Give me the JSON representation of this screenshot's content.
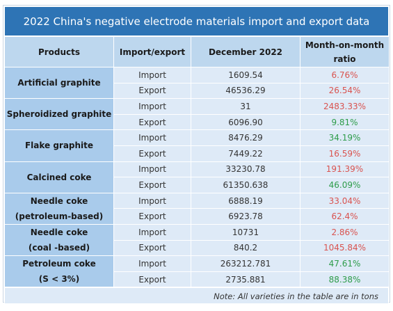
{
  "title": "2022 China's negative electrode materials import and export data",
  "headers": {
    "products": "Products",
    "import_export": "Import/export",
    "december": "December 2022",
    "mom_line1": "Month-on-month",
    "mom_line2": "ratio"
  },
  "groups": [
    {
      "product_line1": "Artificial graphite",
      "product_line2": "",
      "rows": [
        {
          "type": "Import",
          "value": "1609.54",
          "ratio": "6.76%",
          "ratio_color": "red"
        },
        {
          "type": "Export",
          "value": "46536.29",
          "ratio": "26.54%",
          "ratio_color": "red"
        }
      ]
    },
    {
      "product_line1": "Spheroidized graphite",
      "product_line2": "",
      "rows": [
        {
          "type": "Import",
          "value": "31",
          "ratio": "2483.33%",
          "ratio_color": "red"
        },
        {
          "type": "Export",
          "value": "6096.90",
          "ratio": "9.81%",
          "ratio_color": "green"
        }
      ]
    },
    {
      "product_line1": "Flake graphite",
      "product_line2": "",
      "rows": [
        {
          "type": "Import",
          "value": "8476.29",
          "ratio": "34.19%",
          "ratio_color": "green"
        },
        {
          "type": "Export",
          "value": "7449.22",
          "ratio": "16.59%",
          "ratio_color": "red"
        }
      ]
    },
    {
      "product_line1": "Calcined coke",
      "product_line2": "",
      "rows": [
        {
          "type": "Import",
          "value": "33230.78",
          "ratio": "191.39%",
          "ratio_color": "red"
        },
        {
          "type": "Export",
          "value": "61350.638",
          "ratio": "46.09%",
          "ratio_color": "green"
        }
      ]
    },
    {
      "product_line1": "Needle coke",
      "product_line2": "(petroleum-based)",
      "rows": [
        {
          "type": "Import",
          "value": "6888.19",
          "ratio": "33.04%",
          "ratio_color": "red"
        },
        {
          "type": "Export",
          "value": "6923.78",
          "ratio": "62.4%",
          "ratio_color": "red"
        }
      ]
    },
    {
      "product_line1": "Needle coke",
      "product_line2": "(coal -based)",
      "rows": [
        {
          "type": "Import",
          "value": "10731",
          "ratio": "2.86%",
          "ratio_color": "red"
        },
        {
          "type": "Export",
          "value": "840.2",
          "ratio": "1045.84%",
          "ratio_color": "red"
        }
      ]
    },
    {
      "product_line1": "Petroleum coke",
      "product_line2": "(S < 3%)",
      "rows": [
        {
          "type": "Import",
          "value": "263212.781",
          "ratio": "47.61%",
          "ratio_color": "green"
        },
        {
          "type": "Export",
          "value": "2735.881",
          "ratio": "88.38%",
          "ratio_color": "green"
        }
      ]
    }
  ],
  "note": "Note: All varieties in the table are in tons",
  "colors": {
    "title_bg": "#2e74b5",
    "header_bg": "#bdd7ee",
    "product_bg": "#a9cbeb",
    "cell_bg": "#deeaf7",
    "red": "#d9534f",
    "green": "#2e9c4a"
  }
}
